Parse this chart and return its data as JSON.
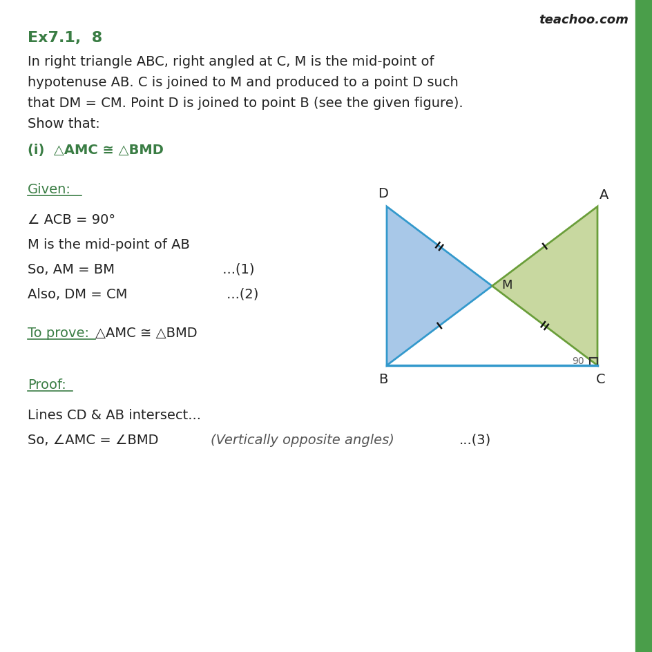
{
  "title": "Ex7.1,  8",
  "title_color": "#3a7d44",
  "watermark": "teachoo.com",
  "bg_color": "#ffffff",
  "green_bar_color": "#4a9e4a",
  "body_text": [
    "In right triangle ABC, right angled at C, M is the mid-point of",
    "hypotenuse AB. C is joined to M and produced to a point D such",
    "that DM = CM. Point D is joined to point B (see the given figure).",
    "Show that:"
  ],
  "green_line1": "(i)  △AMC ≅ △BMD",
  "given_label": "Given:",
  "given_items": [
    "∠ ACB = 90°",
    "M is the mid-point of AB",
    "So, AM = BM                         ...(1)",
    "Also, DM = CM                       ...(2)"
  ],
  "triangle_BMD_color": "#a8c8e8",
  "triangle_BMD_edge": "#3399cc",
  "triangle_AMC_color": "#c8d8a0",
  "triangle_AMC_edge": "#6a9e3a",
  "tick_color": "#1a1a1a"
}
